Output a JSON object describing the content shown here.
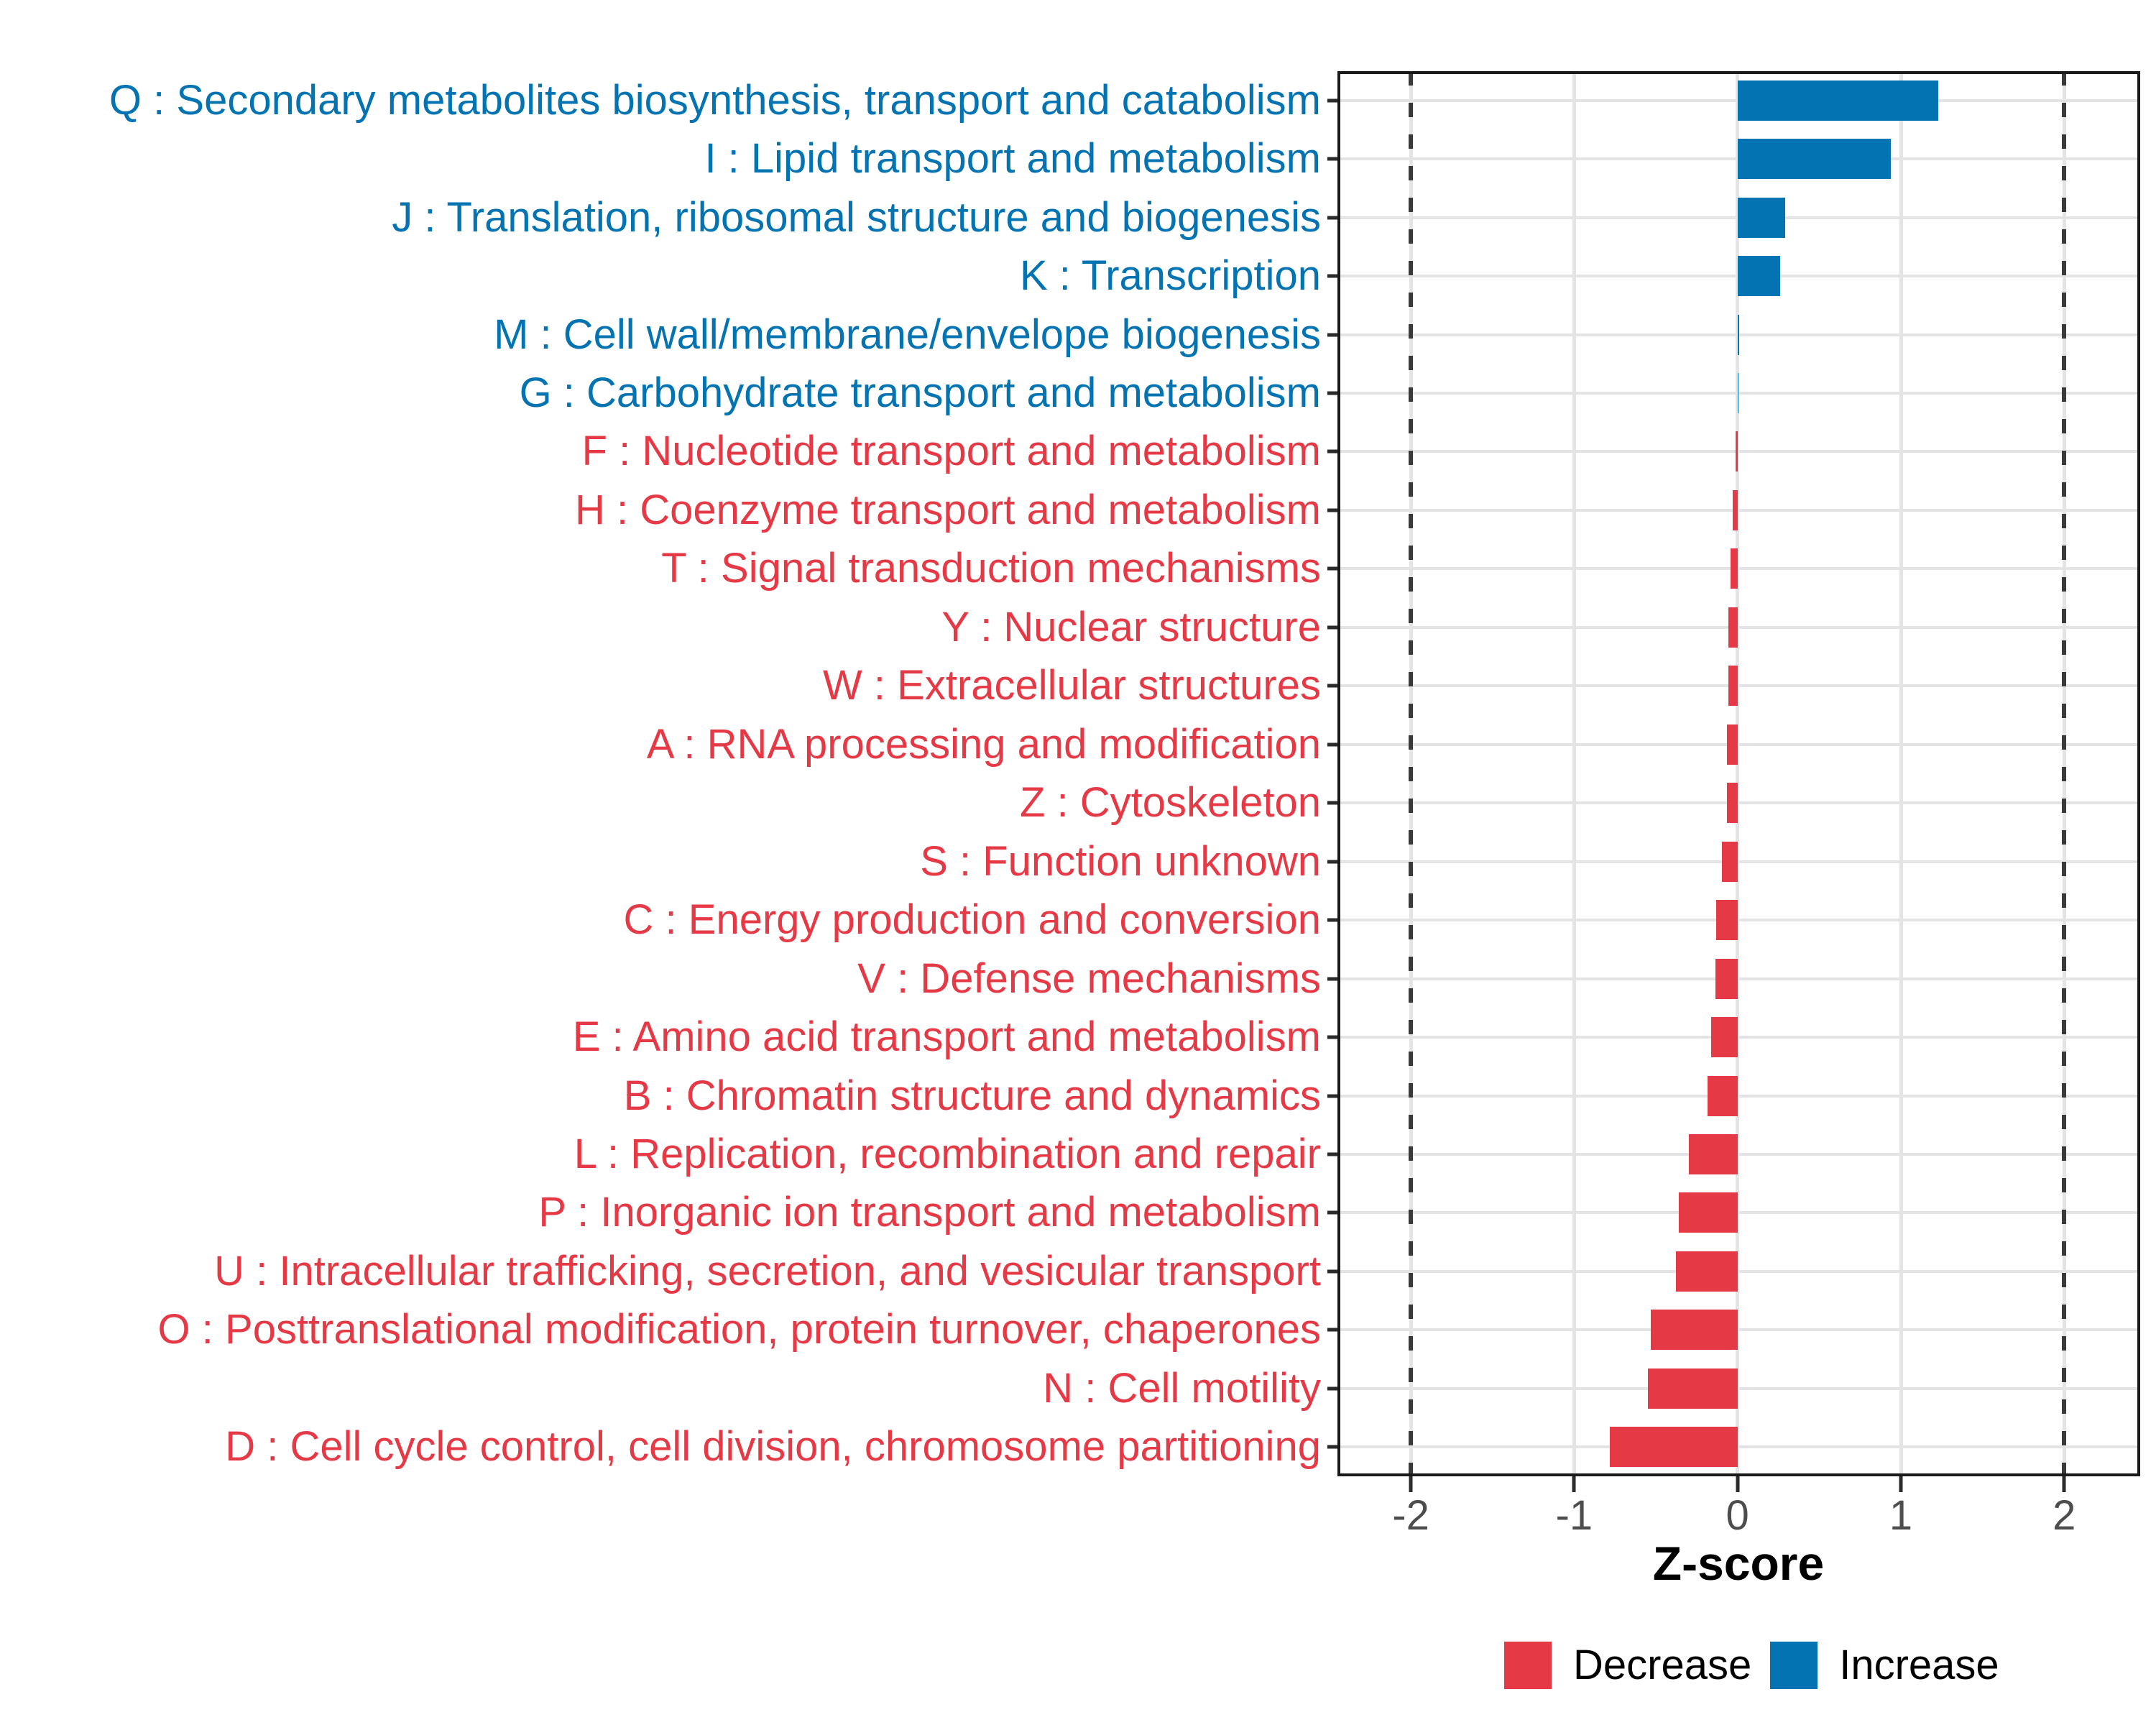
{
  "chart_data": {
    "type": "bar",
    "orientation": "horizontal",
    "title": "",
    "xlabel": "Z-score",
    "ylabel": "",
    "x_ticks": [
      -2,
      -1,
      0,
      1,
      2
    ],
    "x_tick_labels": [
      "-2",
      "-1",
      "0",
      "1",
      "2"
    ],
    "xlim": [
      -2.45,
      2.46
    ],
    "reference_lines_dashed": [
      -2,
      2
    ],
    "grid": true,
    "legend_position": "bottom",
    "categories": [
      "Q : Secondary metabolites biosynthesis, transport and catabolism",
      "I : Lipid transport and metabolism",
      "J : Translation, ribosomal structure and biogenesis",
      "K : Transcription",
      "M : Cell wall/membrane/envelope biogenesis",
      "G : Carbohydrate transport and metabolism",
      "F : Nucleotide transport and metabolism",
      "H : Coenzyme transport and metabolism",
      "T : Signal transduction mechanisms",
      "Y : Nuclear structure",
      "W : Extracellular structures",
      "A : RNA processing and modification",
      "Z : Cytoskeleton",
      "S : Function unknown",
      "C : Energy production and conversion",
      "V : Defense mechanisms",
      "E : Amino acid transport and metabolism",
      "B : Chromatin structure and dynamics",
      "L : Replication, recombination and repair",
      "P : Inorganic ion transport and metabolism",
      "U : Intracellular trafficking, secretion, and vesicular transport",
      "O : Posttranslational modification, protein turnover, chaperones",
      "N : Cell motility",
      "D : Cell cycle control, cell division, chromosome partitioning"
    ],
    "values": [
      1.23,
      0.94,
      0.29,
      0.26,
      0.012,
      0.004,
      -0.012,
      -0.03,
      -0.042,
      -0.055,
      -0.058,
      -0.065,
      -0.065,
      -0.097,
      -0.13,
      -0.136,
      -0.16,
      -0.185,
      -0.3,
      -0.36,
      -0.375,
      -0.53,
      -0.55,
      -0.78
    ],
    "groups": [
      "Increase",
      "Increase",
      "Increase",
      "Increase",
      "Increase",
      "Increase",
      "Decrease",
      "Decrease",
      "Decrease",
      "Decrease",
      "Decrease",
      "Decrease",
      "Decrease",
      "Decrease",
      "Decrease",
      "Decrease",
      "Decrease",
      "Decrease",
      "Decrease",
      "Decrease",
      "Decrease",
      "Decrease",
      "Decrease",
      "Decrease"
    ],
    "legend": [
      {
        "label": "Decrease",
        "color": "#E63946"
      },
      {
        "label": "Increase",
        "color": "#0473B2"
      }
    ]
  },
  "style": {
    "increase_color": "#0473B2",
    "decrease_color": "#E63946",
    "grid_color": "#E4E4E4",
    "dashed_line_color": "#3A3A3A",
    "tick_label_color": "#4D4D4D",
    "axis_title_color": "#000000",
    "panel_border_color": "#1A1A1A",
    "background_color": "#FFFFFF"
  }
}
